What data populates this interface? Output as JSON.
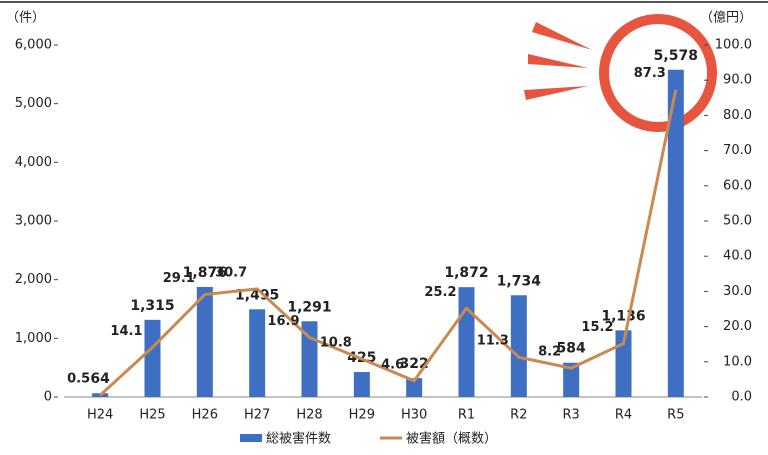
{
  "chart_data": {
    "type": "bar-line",
    "y_label": "（件）",
    "y2_label": "（億円）",
    "categories": [
      "H24",
      "H25",
      "H26",
      "H27",
      "H28",
      "H29",
      "H30",
      "R1",
      "R2",
      "R3",
      "R4",
      "R5"
    ],
    "series": [
      {
        "name": "総被害件数",
        "type": "bar",
        "color": "#3f6fc2",
        "values": [
          64,
          1315,
          1876,
          1495,
          1291,
          425,
          322,
          1872,
          1734,
          584,
          1136,
          5578
        ],
        "value_labels": [
          "64",
          "1,315",
          "1,876",
          "1,495",
          "1,291",
          "425",
          "322",
          "1,872",
          "1,734",
          "584",
          "1,136",
          "5,578"
        ]
      },
      {
        "name": "被害額（概数）",
        "type": "line",
        "axis": "y2",
        "color": "#c98a52",
        "values": [
          0.5,
          14.1,
          29.1,
          30.7,
          16.9,
          10.8,
          4.6,
          25.2,
          11.3,
          8.2,
          15.2,
          87.3
        ]
      }
    ],
    "ylim": [
      0,
      6000
    ],
    "yticks": [
      0,
      {
        "value": 1000,
        "label": "1,000"
      },
      {
        "value": 2000,
        "label": "2,000"
      },
      {
        "value": 3000,
        "label": "3,000"
      },
      {
        "value": 4000,
        "label": "4,000"
      },
      {
        "value": 5000,
        "label": "5,000"
      },
      {
        "value": 6000,
        "label": "6,000"
      }
    ],
    "y2lim": [
      0,
      100
    ],
    "y2ticks": [
      {
        "value": 0,
        "label": "0.0"
      },
      {
        "value": 10,
        "label": "10.0"
      },
      {
        "value": 20,
        "label": "20.0"
      },
      {
        "value": 30,
        "label": "30.0"
      },
      {
        "value": 40,
        "label": "40.0"
      },
      {
        "value": 50,
        "label": "50.0"
      },
      {
        "value": 60,
        "label": "60.0"
      },
      {
        "value": 70,
        "label": "70.0"
      },
      {
        "value": 80,
        "label": "80.0"
      },
      {
        "value": 90,
        "label": "90.0"
      },
      {
        "value": 100,
        "label": "100.0"
      }
    ],
    "grid": false,
    "legend": "bottom"
  }
}
